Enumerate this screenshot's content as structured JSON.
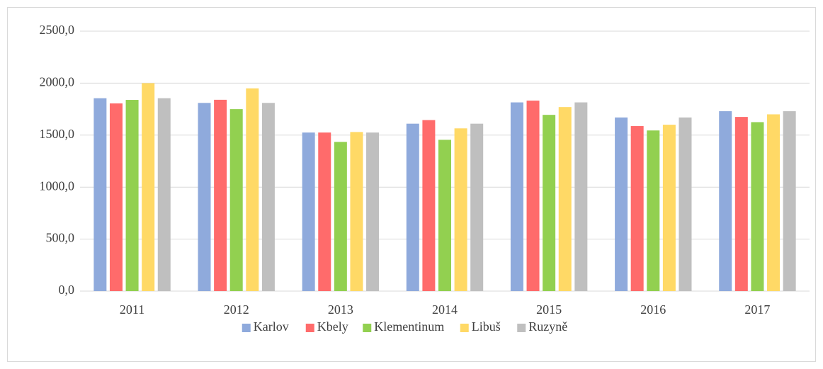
{
  "chart_data": {
    "type": "bar",
    "categories": [
      "2011",
      "2012",
      "2013",
      "2014",
      "2015",
      "2016",
      "2017"
    ],
    "series": [
      {
        "name": "Karlov",
        "color": "#8faadc",
        "values": [
          1855,
          1810,
          1525,
          1610,
          1815,
          1670,
          1730
        ]
      },
      {
        "name": "Kbely",
        "color": "#ff6b6b",
        "values": [
          1805,
          1840,
          1525,
          1645,
          1832,
          1587,
          1675
        ]
      },
      {
        "name": "Klementinum",
        "color": "#92d050",
        "values": [
          1839,
          1750,
          1435,
          1455,
          1695,
          1545,
          1625
        ]
      },
      {
        "name": "Libuš",
        "color": "#ffd966",
        "values": [
          2000,
          1950,
          1530,
          1565,
          1770,
          1600,
          1700
        ]
      },
      {
        "name": "Ruzyně",
        "color": "#bfbfbf",
        "values": [
          1855,
          1810,
          1525,
          1610,
          1815,
          1670,
          1730
        ]
      }
    ],
    "ylim": [
      0,
      2500
    ],
    "yticks": [
      {
        "value": 0,
        "label": "0,0"
      },
      {
        "value": 500,
        "label": "500,0"
      },
      {
        "value": 1000,
        "label": "1000,0"
      },
      {
        "value": 1500,
        "label": "1500,0"
      },
      {
        "value": 2000,
        "label": "2000,0"
      },
      {
        "value": 2500,
        "label": "2500,0"
      }
    ],
    "grid": true,
    "legend": "bottom"
  }
}
